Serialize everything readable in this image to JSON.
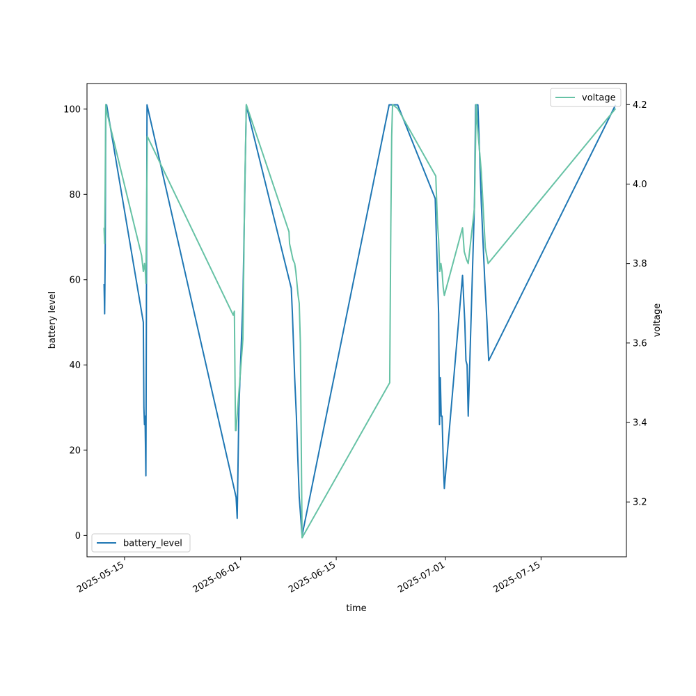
{
  "chart_data": {
    "type": "line",
    "xlabel": "time",
    "ylabel": "battery level",
    "y2label": "voltage",
    "xlim": [
      "2025-05-09T12:00",
      "2025-07-27T12:00"
    ],
    "ylim": [
      -5,
      106
    ],
    "y2lim": [
      3.062,
      4.253
    ],
    "x_ticks": [
      "2025-05-15",
      "2025-06-01",
      "2025-06-15",
      "2025-07-01",
      "2025-07-15"
    ],
    "y_ticks": [
      0,
      20,
      40,
      60,
      80,
      100
    ],
    "y2_ticks": [
      3.2,
      3.4,
      3.6,
      3.8,
      4.0,
      4.2
    ],
    "grid": false,
    "colors": {
      "battery_level": "#1f77b4",
      "voltage": "#66c2a5"
    },
    "series": [
      {
        "name": "battery_level",
        "axis": "left",
        "legend": "lower-left",
        "points": [
          [
            "2025-05-12T00:00",
            59
          ],
          [
            "2025-05-12T02:00",
            52
          ],
          [
            "2025-05-12T04:00",
            66
          ],
          [
            "2025-05-12T06:00",
            101
          ],
          [
            "2025-05-12T09:00",
            101
          ],
          [
            "2025-05-17T18:00",
            50
          ],
          [
            "2025-05-17T20:00",
            30
          ],
          [
            "2025-05-17T22:00",
            26
          ],
          [
            "2025-05-18T00:00",
            28
          ],
          [
            "2025-05-18T03:00",
            14
          ],
          [
            "2025-05-18T05:00",
            57
          ],
          [
            "2025-05-18T07:00",
            101
          ],
          [
            "2025-05-31T08:00",
            9
          ],
          [
            "2025-05-31T12:00",
            4
          ],
          [
            "2025-05-31T18:00",
            30
          ],
          [
            "2025-06-01T08:00",
            55
          ],
          [
            "2025-06-01T20:00",
            101
          ],
          [
            "2025-06-01T23:00",
            100
          ],
          [
            "2025-06-08T10:00",
            58
          ],
          [
            "2025-06-08T14:00",
            52
          ],
          [
            "2025-06-08T22:00",
            37
          ],
          [
            "2025-06-09T04:00",
            28
          ],
          [
            "2025-06-09T08:00",
            20
          ],
          [
            "2025-06-09T14:00",
            9
          ],
          [
            "2025-06-10T00:00",
            0
          ],
          [
            "2025-06-22T18:00",
            101
          ],
          [
            "2025-06-24T00:00",
            101
          ],
          [
            "2025-06-29T12:00",
            79
          ],
          [
            "2025-06-30T00:00",
            52
          ],
          [
            "2025-06-30T03:00",
            26
          ],
          [
            "2025-06-30T06:00",
            37
          ],
          [
            "2025-06-30T09:00",
            28
          ],
          [
            "2025-06-30T12:00",
            28
          ],
          [
            "2025-06-30T16:00",
            18
          ],
          [
            "2025-06-30T20:00",
            11
          ],
          [
            "2025-07-03T12:00",
            61
          ],
          [
            "2025-07-03T20:00",
            50
          ],
          [
            "2025-07-04T00:00",
            41
          ],
          [
            "2025-07-04T04:00",
            40
          ],
          [
            "2025-07-04T08:00",
            28
          ],
          [
            "2025-07-05T06:00",
            78
          ],
          [
            "2025-07-05T10:00",
            101
          ],
          [
            "2025-07-05T18:00",
            101
          ],
          [
            "2025-07-06T06:00",
            78
          ],
          [
            "2025-07-06T18:00",
            60
          ],
          [
            "2025-07-07T02:00",
            50
          ],
          [
            "2025-07-07T08:00",
            41
          ],
          [
            "2025-07-25T22:00",
            101
          ]
        ]
      },
      {
        "name": "voltage",
        "axis": "right",
        "legend": "upper-right",
        "points": [
          [
            "2025-05-12T00:00",
            3.89
          ],
          [
            "2025-05-12T02:00",
            3.85
          ],
          [
            "2025-05-12T04:00",
            4.0
          ],
          [
            "2025-05-12T06:00",
            4.2
          ],
          [
            "2025-05-12T10:00",
            4.18
          ],
          [
            "2025-05-17T12:00",
            3.82
          ],
          [
            "2025-05-17T18:00",
            3.78
          ],
          [
            "2025-05-17T22:00",
            3.8
          ],
          [
            "2025-05-18T01:00",
            3.78
          ],
          [
            "2025-05-18T03:00",
            3.75
          ],
          [
            "2025-05-18T06:00",
            3.97
          ],
          [
            "2025-05-18T08:00",
            4.12
          ],
          [
            "2025-05-30T22:00",
            3.67
          ],
          [
            "2025-05-31T02:00",
            3.68
          ],
          [
            "2025-05-31T06:00",
            3.38
          ],
          [
            "2025-05-31T08:00",
            3.38
          ],
          [
            "2025-06-01T08:00",
            3.61
          ],
          [
            "2025-06-01T14:00",
            3.97
          ],
          [
            "2025-06-01T20:00",
            4.2
          ],
          [
            "2025-06-08T02:00",
            3.88
          ],
          [
            "2025-06-08T04:00",
            3.85
          ],
          [
            "2025-06-08T10:00",
            3.83
          ],
          [
            "2025-06-08T16:00",
            3.81
          ],
          [
            "2025-06-08T22:00",
            3.8
          ],
          [
            "2025-06-09T02:00",
            3.78
          ],
          [
            "2025-06-09T10:00",
            3.72
          ],
          [
            "2025-06-09T14:00",
            3.7
          ],
          [
            "2025-06-09T18:00",
            3.6
          ],
          [
            "2025-06-10T00:00",
            3.11
          ],
          [
            "2025-06-22T20:00",
            3.5
          ],
          [
            "2025-06-23T00:00",
            3.9
          ],
          [
            "2025-06-23T03:00",
            4.12
          ],
          [
            "2025-06-23T06:00",
            4.2
          ],
          [
            "2025-06-24T00:00",
            4.19
          ],
          [
            "2025-06-29T14:00",
            4.02
          ],
          [
            "2025-06-29T20:00",
            3.9
          ],
          [
            "2025-06-30T00:00",
            3.86
          ],
          [
            "2025-06-30T04:00",
            3.78
          ],
          [
            "2025-06-30T08:00",
            3.8
          ],
          [
            "2025-06-30T12:00",
            3.78
          ],
          [
            "2025-06-30T16:00",
            3.74
          ],
          [
            "2025-06-30T20:00",
            3.72
          ],
          [
            "2025-07-03T12:00",
            3.89
          ],
          [
            "2025-07-03T18:00",
            3.83
          ],
          [
            "2025-07-04T02:00",
            3.81
          ],
          [
            "2025-07-04T08:00",
            3.8
          ],
          [
            "2025-07-05T06:00",
            3.94
          ],
          [
            "2025-07-05T12:00",
            4.2
          ],
          [
            "2025-07-05T16:00",
            4.15
          ],
          [
            "2025-07-06T06:00",
            4.03
          ],
          [
            "2025-07-06T20:00",
            3.84
          ],
          [
            "2025-07-07T06:00",
            3.8
          ],
          [
            "2025-07-25T22:00",
            4.19
          ]
        ]
      }
    ]
  }
}
